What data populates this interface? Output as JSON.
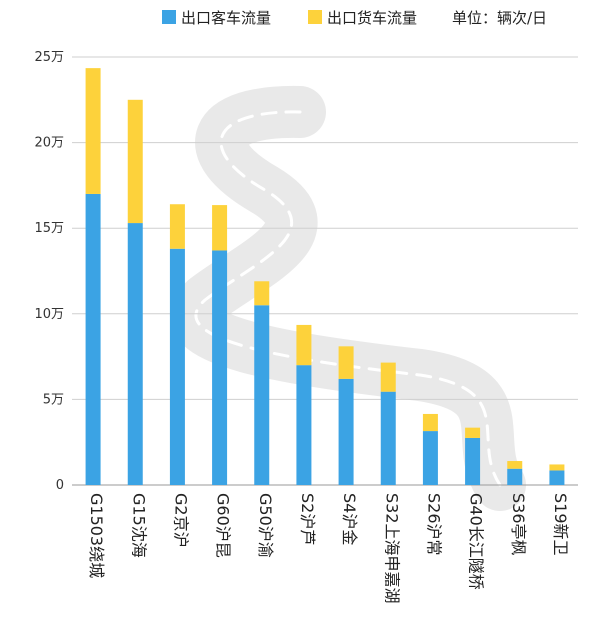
{
  "chart_data": {
    "type": "bar",
    "stacked": true,
    "unit_note": "单位：辆次/日",
    "categories": [
      "G1503绕城",
      "G15沈海",
      "G2京沪",
      "G60沪昆",
      "G50沪渝",
      "S2沪芦",
      "S4沪金",
      "S32上海申嘉湖",
      "S26沪常",
      "G40长江隧桥",
      "S36亭枫",
      "S19新卫"
    ],
    "series": [
      {
        "name": "出口客车流量",
        "color": "#3BA3E4",
        "values": [
          170000,
          153000,
          138000,
          137000,
          105000,
          70000,
          62000,
          54500,
          31500,
          27500,
          9500,
          8500
        ]
      },
      {
        "name": "出口货车流量",
        "color": "#FDD23B",
        "values": [
          73500,
          72000,
          26000,
          26500,
          14000,
          23500,
          19000,
          17000,
          10000,
          6000,
          4500,
          3500
        ]
      }
    ],
    "y_ticks": [
      "0",
      "5万",
      "10万",
      "15万",
      "20万",
      "25万"
    ],
    "ylim": [
      0,
      250000
    ],
    "grid": true,
    "legend_position": "top-right"
  }
}
